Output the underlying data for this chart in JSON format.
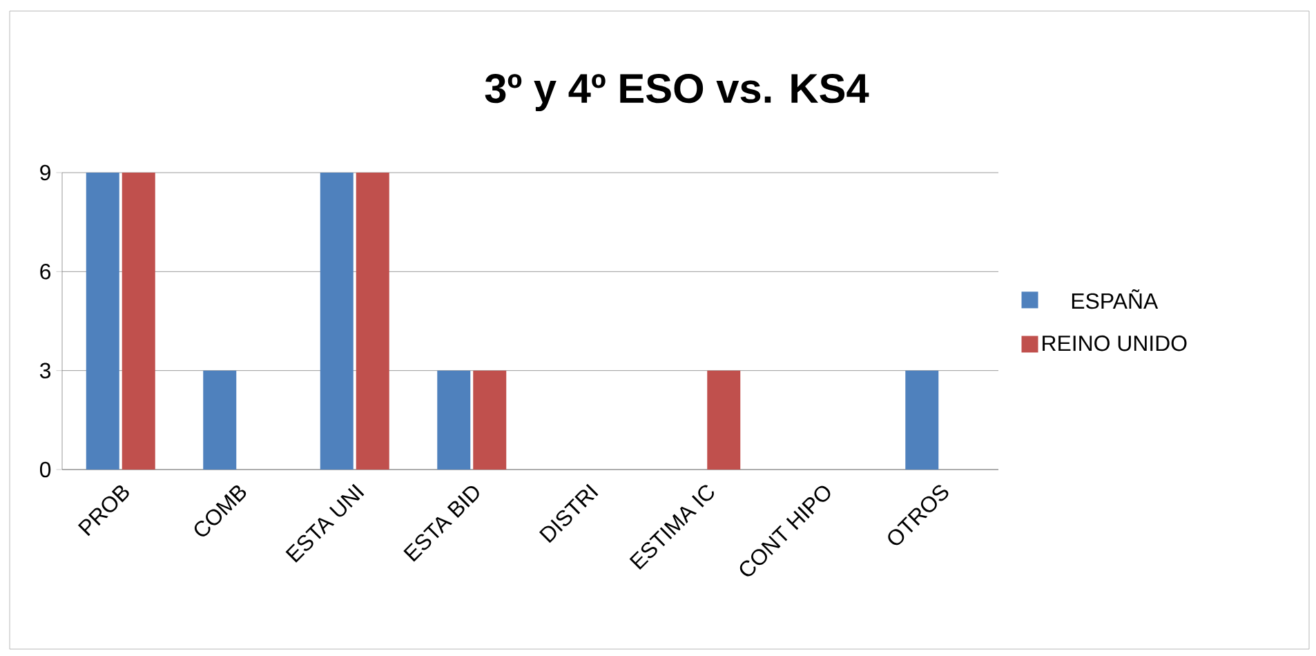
{
  "chart_data": {
    "type": "bar",
    "title": "3º y 4º ESO vs. KS4",
    "categories": [
      "PROB",
      "COMB",
      "ESTA UNI",
      "ESTA BID",
      "DISTRI",
      "ESTIMA IC",
      "CONT HIPO",
      "OTROS"
    ],
    "series": [
      {
        "name": "ESPAÑA",
        "color": "#4f81bd",
        "values": [
          9,
          3,
          9,
          3,
          0,
          0,
          0,
          3
        ]
      },
      {
        "name": "REINO UNIDO",
        "color": "#c0504d",
        "values": [
          9,
          0,
          9,
          3,
          0,
          3,
          0,
          0
        ]
      }
    ],
    "ylim": [
      0,
      9
    ],
    "yticks": [
      0,
      3,
      6,
      9
    ],
    "grid": "y",
    "legend": "right"
  }
}
